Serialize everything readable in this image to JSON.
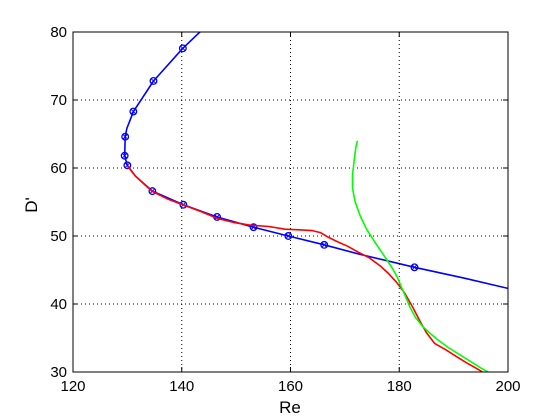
{
  "chart_data": {
    "type": "line",
    "title": "",
    "xlabel": "Re",
    "ylabel": "D'",
    "xlim": [
      120,
      200
    ],
    "ylim": [
      30,
      80
    ],
    "xticks": [
      120,
      140,
      160,
      180,
      200
    ],
    "yticks": [
      30,
      40,
      50,
      60,
      70,
      80
    ],
    "grid": true,
    "legend": "none",
    "series": [
      {
        "color": "#0000ff",
        "marker": "circle",
        "points": [
          [
            144,
            80.5
          ],
          [
            140.2,
            77.6
          ],
          [
            134.8,
            72.8
          ],
          [
            131.1,
            68.3
          ],
          [
            129.9,
            65.8
          ],
          [
            129.6,
            64.6
          ],
          [
            129.5,
            61.8
          ],
          [
            129.8,
            60.9
          ],
          [
            130.0,
            60.4
          ],
          [
            131.5,
            58.8
          ],
          [
            134.6,
            56.6
          ],
          [
            140.3,
            54.6
          ],
          [
            146.5,
            52.8
          ],
          [
            153.2,
            51.3
          ],
          [
            159.6,
            50.0
          ],
          [
            166.2,
            48.7
          ],
          [
            172.8,
            47.3
          ],
          [
            182.8,
            45.4
          ],
          [
            192,
            43.8
          ],
          [
            200,
            42.3
          ]
        ],
        "marker_points": [
          [
            140.2,
            77.6
          ],
          [
            134.8,
            72.8
          ],
          [
            131.1,
            68.3
          ],
          [
            129.6,
            64.6
          ],
          [
            129.5,
            61.8
          ],
          [
            130.0,
            60.4
          ],
          [
            134.6,
            56.6
          ],
          [
            140.3,
            54.6
          ],
          [
            146.5,
            52.8
          ],
          [
            153.2,
            51.3
          ],
          [
            159.6,
            50.0
          ],
          [
            166.2,
            48.7
          ],
          [
            182.8,
            45.4
          ]
        ]
      },
      {
        "color": "#ff0000",
        "marker": "none",
        "points": [
          [
            130.0,
            60.3
          ],
          [
            131.5,
            58.8
          ],
          [
            134.5,
            56.6
          ],
          [
            137.5,
            55.4
          ],
          [
            140.5,
            54.5
          ],
          [
            143.5,
            53.6
          ],
          [
            146.5,
            52.6
          ],
          [
            149.5,
            52.0
          ],
          [
            152.5,
            51.6
          ],
          [
            156.0,
            51.4
          ],
          [
            159.0,
            51.0
          ],
          [
            162.0,
            50.9
          ],
          [
            164.0,
            50.8
          ],
          [
            165.5,
            50.5
          ],
          [
            167.0,
            49.8
          ],
          [
            168.5,
            49.2
          ],
          [
            170.5,
            48.5
          ],
          [
            172.5,
            47.6
          ],
          [
            174.5,
            46.8
          ],
          [
            176.5,
            45.6
          ],
          [
            178.0,
            44.5
          ],
          [
            179.5,
            43.2
          ],
          [
            181.0,
            41.6
          ],
          [
            182.5,
            39.5
          ],
          [
            183.8,
            37.5
          ],
          [
            185.0,
            35.8
          ],
          [
            186.5,
            34.2
          ],
          [
            188.5,
            33.3
          ],
          [
            190.5,
            32.3
          ],
          [
            192.5,
            31.3
          ],
          [
            194.5,
            30.4
          ],
          [
            195.7,
            29.8
          ]
        ]
      },
      {
        "color": "#00ff00",
        "marker": "none",
        "points": [
          [
            172.3,
            64.0
          ],
          [
            172.0,
            63.0
          ],
          [
            171.7,
            61.0
          ],
          [
            171.4,
            59.0
          ],
          [
            171.4,
            57.0
          ],
          [
            171.9,
            55.0
          ],
          [
            172.8,
            53.0
          ],
          [
            174.0,
            51.0
          ],
          [
            175.6,
            49.0
          ],
          [
            177.3,
            47.0
          ],
          [
            178.7,
            45.3
          ],
          [
            179.6,
            44.0
          ],
          [
            180.4,
            42.5
          ],
          [
            181.2,
            41.0
          ],
          [
            182.0,
            39.5
          ],
          [
            183.0,
            38.0
          ],
          [
            184.2,
            36.8
          ],
          [
            185.5,
            35.8
          ],
          [
            187.0,
            34.8
          ],
          [
            189.0,
            33.6
          ],
          [
            191.0,
            32.6
          ],
          [
            193.0,
            31.6
          ],
          [
            195.0,
            30.6
          ],
          [
            196.3,
            30.0
          ]
        ]
      }
    ]
  }
}
